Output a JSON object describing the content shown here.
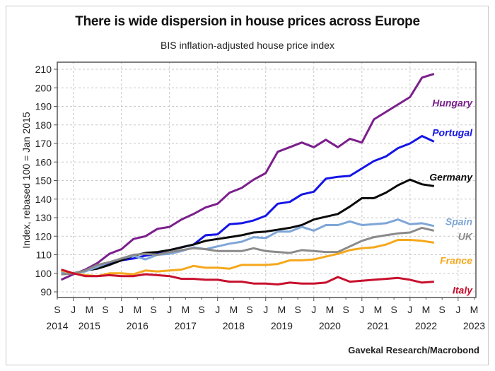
{
  "chart_data": {
    "type": "line",
    "title": "There is wide dispersion in house prices across Europe",
    "subtitle": "BIS inflation-adjusted house price index",
    "ylabel": "Index, rebased 100 = Jan 2015",
    "xlabel": "",
    "source": "Gavekal Research/Macrobond",
    "ylim": [
      90,
      210
    ],
    "yticks": [
      90,
      100,
      110,
      120,
      130,
      140,
      150,
      160,
      170,
      180,
      190,
      200,
      210
    ],
    "xlim": [
      2014.667,
      2023.37
    ],
    "grid": true,
    "legend": "inline-right",
    "x_month_ticks": [
      {
        "x": 2014.667,
        "label": "S"
      },
      {
        "x": 2015.0,
        "label": "J"
      },
      {
        "x": 2015.333,
        "label": "M"
      },
      {
        "x": 2015.667,
        "label": "S"
      },
      {
        "x": 2016.0,
        "label": "J"
      },
      {
        "x": 2016.333,
        "label": "M"
      },
      {
        "x": 2016.667,
        "label": "S"
      },
      {
        "x": 2017.0,
        "label": "J"
      },
      {
        "x": 2017.333,
        "label": "M"
      },
      {
        "x": 2017.667,
        "label": "S"
      },
      {
        "x": 2018.0,
        "label": "J"
      },
      {
        "x": 2018.333,
        "label": "M"
      },
      {
        "x": 2018.667,
        "label": "S"
      },
      {
        "x": 2019.0,
        "label": "J"
      },
      {
        "x": 2019.333,
        "label": "M"
      },
      {
        "x": 2019.667,
        "label": "S"
      },
      {
        "x": 2020.0,
        "label": "J"
      },
      {
        "x": 2020.333,
        "label": "M"
      },
      {
        "x": 2020.667,
        "label": "S"
      },
      {
        "x": 2021.0,
        "label": "J"
      },
      {
        "x": 2021.333,
        "label": "M"
      },
      {
        "x": 2021.667,
        "label": "S"
      },
      {
        "x": 2022.0,
        "label": "J"
      },
      {
        "x": 2022.333,
        "label": "M"
      },
      {
        "x": 2022.667,
        "label": "S"
      },
      {
        "x": 2023.0,
        "label": "J"
      },
      {
        "x": 2023.333,
        "label": "M"
      }
    ],
    "x_year_labels": [
      {
        "x": 2014.667,
        "label": "2014"
      },
      {
        "x": 2015.333,
        "label": "2015"
      },
      {
        "x": 2016.333,
        "label": "2016"
      },
      {
        "x": 2017.333,
        "label": "2017"
      },
      {
        "x": 2018.333,
        "label": "2018"
      },
      {
        "x": 2019.333,
        "label": "2019"
      },
      {
        "x": 2020.333,
        "label": "2020"
      },
      {
        "x": 2021.333,
        "label": "2021"
      },
      {
        "x": 2022.333,
        "label": "2022"
      },
      {
        "x": 2023.333,
        "label": "2023"
      }
    ],
    "x": [
      2014.75,
      2015.0,
      2015.25,
      2015.5,
      2015.75,
      2016.0,
      2016.25,
      2016.5,
      2016.75,
      2017.0,
      2017.25,
      2017.5,
      2017.75,
      2018.0,
      2018.25,
      2018.5,
      2018.75,
      2019.0,
      2019.25,
      2019.5,
      2019.75,
      2020.0,
      2020.25,
      2020.5,
      2020.75,
      2021.0,
      2021.25,
      2021.5,
      2021.75,
      2022.0,
      2022.25,
      2022.5
    ],
    "series": [
      {
        "name": "Hungary",
        "color": "#7b1f8c",
        "values": [
          96.5,
          99.5,
          102,
          105.5,
          110.5,
          113,
          118.5,
          120,
          124,
          125,
          129,
          132,
          135.5,
          137.5,
          143.5,
          146,
          150.5,
          154,
          165.5,
          168,
          170.5,
          168,
          172,
          168,
          172.5,
          170.5,
          183,
          187,
          191,
          195,
          205.5,
          207.5
        ]
      },
      {
        "name": "Portugal",
        "color": "#1414e6",
        "values": [
          101,
          100,
          101.5,
          103,
          105,
          107,
          108,
          109.5,
          110.5,
          112.5,
          114,
          115.5,
          120.5,
          121,
          126.5,
          127,
          128.5,
          131,
          137.5,
          138.5,
          142.5,
          144,
          151,
          152,
          152.5,
          156.5,
          160.5,
          163,
          167.5,
          170,
          174,
          171
        ]
      },
      {
        "name": "Germany",
        "color": "#0a0a0a",
        "values": [
          99.5,
          100,
          101.5,
          102.5,
          104.5,
          107,
          109.5,
          111,
          111.5,
          112.5,
          114,
          115.5,
          117.5,
          118.5,
          119.5,
          120.5,
          122,
          122.5,
          123.5,
          124.5,
          126,
          129,
          130.5,
          132,
          136,
          140.5,
          140.5,
          143.5,
          147.5,
          150.5,
          148,
          147
        ]
      },
      {
        "name": "Spain",
        "color": "#7ea6d8",
        "values": [
          100.5,
          100,
          101,
          103.5,
          106,
          108,
          109.5,
          107.5,
          110,
          110.5,
          112,
          114,
          113,
          114.5,
          116,
          117,
          119.5,
          119,
          122.5,
          122.5,
          125,
          123,
          126,
          126,
          128,
          126,
          126.5,
          127,
          129,
          126.5,
          127,
          125.5
        ]
      },
      {
        "name": "UK",
        "color": "#8a8a8a",
        "values": [
          99.5,
          100,
          101.5,
          104.5,
          106,
          108,
          110,
          110.5,
          110,
          111.5,
          112.5,
          113.5,
          113,
          112,
          112,
          112,
          113.5,
          112,
          111.5,
          111,
          112.5,
          112,
          111.5,
          111.5,
          114.5,
          117.5,
          119.5,
          120.5,
          121.5,
          122,
          124.5,
          123
        ]
      },
      {
        "name": "France",
        "color": "#f5a81c",
        "values": [
          101.5,
          100,
          99,
          98.5,
          100,
          100,
          99.5,
          101.5,
          101,
          101.5,
          102,
          104,
          103,
          103,
          102.5,
          104.5,
          104.5,
          104.5,
          105,
          107,
          107,
          107.5,
          109,
          110.5,
          112.5,
          113.5,
          114,
          115.5,
          118,
          118,
          117.5,
          116.5
        ]
      },
      {
        "name": "Italy",
        "color": "#c8102e",
        "values": [
          102,
          100,
          98.5,
          98.5,
          99,
          98.5,
          98.5,
          99.5,
          99,
          98.5,
          97,
          97,
          96.5,
          96.5,
          95.5,
          95.5,
          94.5,
          94.5,
          94,
          95,
          94.5,
          94.5,
          95,
          98,
          95.5,
          96,
          96.5,
          97,
          97.5,
          96.5,
          95,
          95.5
        ]
      }
    ],
    "series_label_positions": [
      {
        "name": "Hungary",
        "y_value": 192
      },
      {
        "name": "Portugal",
        "y_value": 176
      },
      {
        "name": "Germany",
        "y_value": 152
      },
      {
        "name": "Spain",
        "y_value": 128
      },
      {
        "name": "UK",
        "y_value": 120
      },
      {
        "name": "France",
        "y_value": 107
      },
      {
        "name": "Italy",
        "y_value": 91
      }
    ]
  }
}
